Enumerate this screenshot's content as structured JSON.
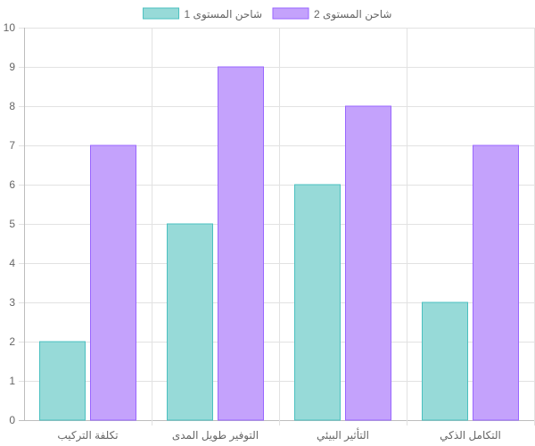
{
  "chart_data": {
    "type": "bar",
    "categories": [
      "تكلفة التركيب",
      "التوفير طويل المدى",
      "التأثير البيئي",
      "التكامل الذكي"
    ],
    "series": [
      {
        "name": "شاحن المستوى 1",
        "values": [
          2,
          5,
          6,
          3
        ],
        "fill": "#97dad8",
        "stroke": "#4bc0c0"
      },
      {
        "name": "شاحن المستوى 2",
        "values": [
          7,
          9,
          8,
          7
        ],
        "fill": "#c4a2fc",
        "stroke": "#9966ff"
      }
    ],
    "ylim": [
      0,
      10
    ],
    "yticks": [
      0,
      1,
      2,
      3,
      4,
      5,
      6,
      7,
      8,
      9,
      10
    ],
    "grid": true,
    "legend_position": "top"
  }
}
